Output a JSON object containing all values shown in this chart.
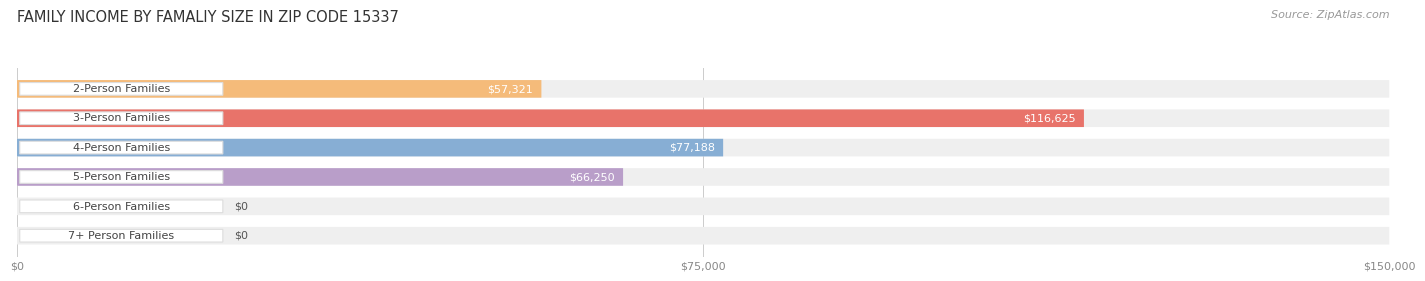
{
  "title": "FAMILY INCOME BY FAMALIY SIZE IN ZIP CODE 15337",
  "source": "Source: ZipAtlas.com",
  "categories": [
    "2-Person Families",
    "3-Person Families",
    "4-Person Families",
    "5-Person Families",
    "6-Person Families",
    "7+ Person Families"
  ],
  "values": [
    57321,
    116625,
    77188,
    66250,
    0,
    0
  ],
  "bar_colors": [
    "#f5bb7a",
    "#e8736a",
    "#87aed4",
    "#b99ec9",
    "#6ecbc4",
    "#a8b8e0"
  ],
  "row_bg_color": "#efefef",
  "label_bg_color": "#ffffff",
  "xlim": [
    0,
    150000
  ],
  "xticks": [
    0,
    75000,
    150000
  ],
  "xtick_labels": [
    "$0",
    "$75,000",
    "$150,000"
  ],
  "value_label_color_inside": "#ffffff",
  "value_label_color_outside": "#555555",
  "title_fontsize": 10.5,
  "source_fontsize": 8,
  "bar_label_fontsize": 8,
  "tick_fontsize": 8,
  "figure_bg": "#ffffff",
  "bar_height": 0.6
}
